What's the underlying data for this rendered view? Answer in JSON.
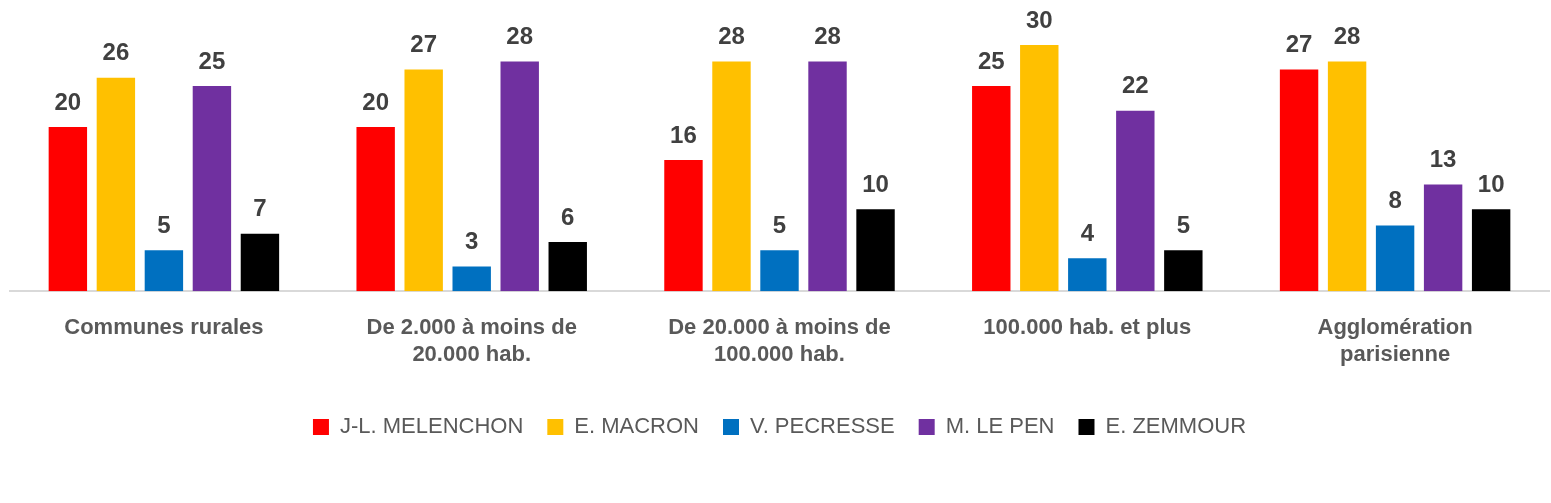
{
  "chart_data": {
    "type": "bar",
    "categories": [
      "Communes rurales",
      "De 2.000 à moins de 20.000 hab.",
      "De 20.000 à moins de 100.000 hab.",
      "100.000 hab. et plus",
      "Agglomération parisienne"
    ],
    "series": [
      {
        "name": "J-L. MELENCHON",
        "color": "#ff0000",
        "values": [
          20,
          20,
          16,
          25,
          27
        ]
      },
      {
        "name": "E. MACRON",
        "color": "#ffc000",
        "values": [
          26,
          27,
          28,
          30,
          28
        ]
      },
      {
        "name": "V. PECRESSE",
        "color": "#0070c0",
        "values": [
          5,
          3,
          5,
          4,
          8
        ]
      },
      {
        "name": "M. LE PEN",
        "color": "#7030a0",
        "values": [
          25,
          28,
          28,
          22,
          13
        ]
      },
      {
        "name": "E. ZEMMOUR",
        "color": "#000000",
        "values": [
          7,
          6,
          10,
          5,
          10
        ]
      }
    ],
    "tick_labels": "x",
    "data_labels": true,
    "grid": false,
    "legend": "bottom"
  }
}
